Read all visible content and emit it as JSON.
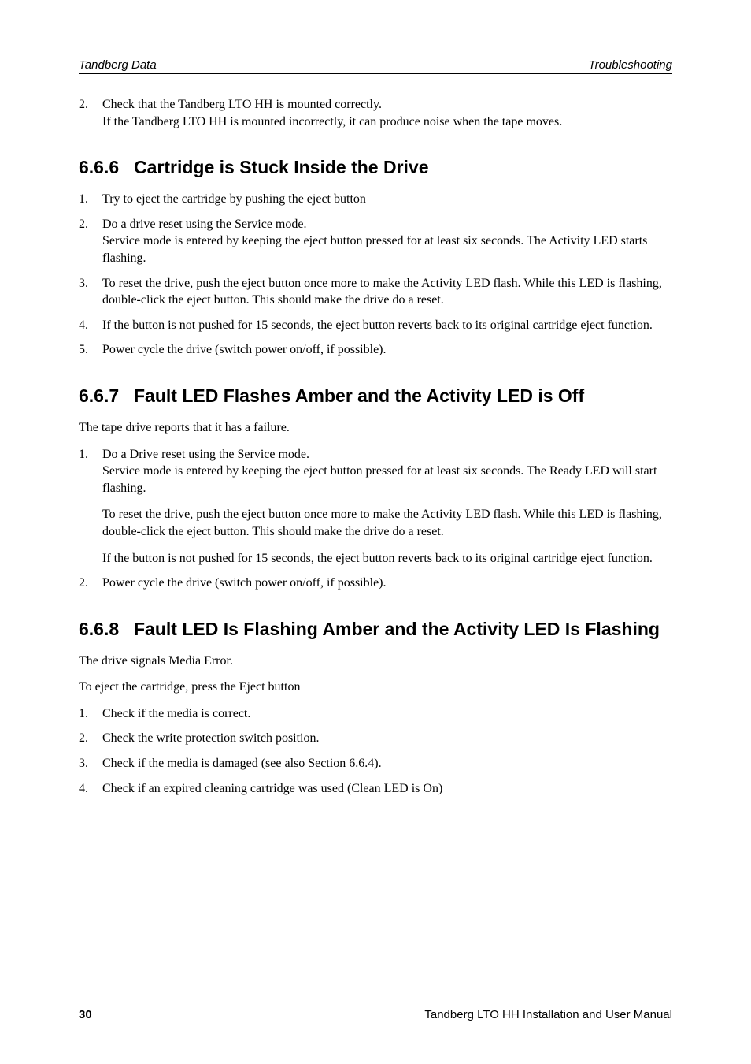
{
  "header": {
    "left": "Tandberg Data",
    "right": "Troubleshooting"
  },
  "prelist": {
    "items": [
      {
        "num": "2.",
        "paras": [
          "Check that the Tandberg LTO HH is mounted correctly.",
          "If the Tandberg LTO HH is mounted incorrectly, it can produce noise when the tape moves."
        ],
        "para_mode": "lines"
      }
    ]
  },
  "sections": [
    {
      "num": "6.6.6",
      "title": "Cartridge is Stuck Inside the Drive",
      "intro_paras": [],
      "items": [
        {
          "num": "1.",
          "paras": [
            "Try to eject the cartridge by pushing the eject button"
          ]
        },
        {
          "num": "2.",
          "paras": [
            "Do a drive reset using the Service mode.",
            "Service mode is entered by keeping the eject button pressed for at least six seconds. The Activity LED starts flashing."
          ],
          "para_mode": "lines"
        },
        {
          "num": "3.",
          "paras": [
            "To reset the drive, push the eject button once more to make the Activity LED flash. While this LED is flashing, double-click the eject button. This should make the drive do a reset."
          ]
        },
        {
          "num": "4.",
          "paras": [
            "If the button is not pushed for 15 seconds, the eject button reverts back to its original cartridge eject function."
          ]
        },
        {
          "num": "5.",
          "paras": [
            "Power cycle the drive (switch power on/off, if possible)."
          ]
        }
      ]
    },
    {
      "num": "6.6.7",
      "title": "Fault LED Flashes Amber and the Activity LED is Off",
      "intro_paras": [
        "The tape drive reports that it has a failure."
      ],
      "items": [
        {
          "num": "1.",
          "paras": [
            "Do a Drive reset using the Service mode.\nService mode is entered by keeping the eject button pressed for at least six seconds. The Ready LED will start flashing.",
            "To reset the drive, push the eject button once more to make the Activity LED flash. While this LED is flashing, double-click the eject button. This should make the drive do a reset.",
            "If the button is not pushed for 15 seconds, the eject button reverts back to its original cartridge eject function."
          ],
          "para_mode": "blocks"
        },
        {
          "num": "2.",
          "paras": [
            "Power cycle the drive (switch power on/off, if possible)."
          ]
        }
      ]
    },
    {
      "num": "6.6.8",
      "title": "Fault LED Is Flashing Amber and the Activity LED Is Flashing",
      "intro_paras": [
        "The drive signals Media Error.",
        "To eject the cartridge, press the Eject button"
      ],
      "items": [
        {
          "num": "1.",
          "paras": [
            "Check if the media is correct."
          ]
        },
        {
          "num": "2.",
          "paras": [
            "Check the write protection switch position."
          ]
        },
        {
          "num": "3.",
          "paras": [
            "Check if the media is damaged (see also Section 6.6.4)."
          ]
        },
        {
          "num": "4.",
          "paras": [
            "Check if an expired cleaning cartridge was used (Clean LED is On)"
          ]
        }
      ]
    }
  ],
  "footer": {
    "page_number": "30",
    "right": "Tandberg LTO HH Installation and User Manual"
  }
}
